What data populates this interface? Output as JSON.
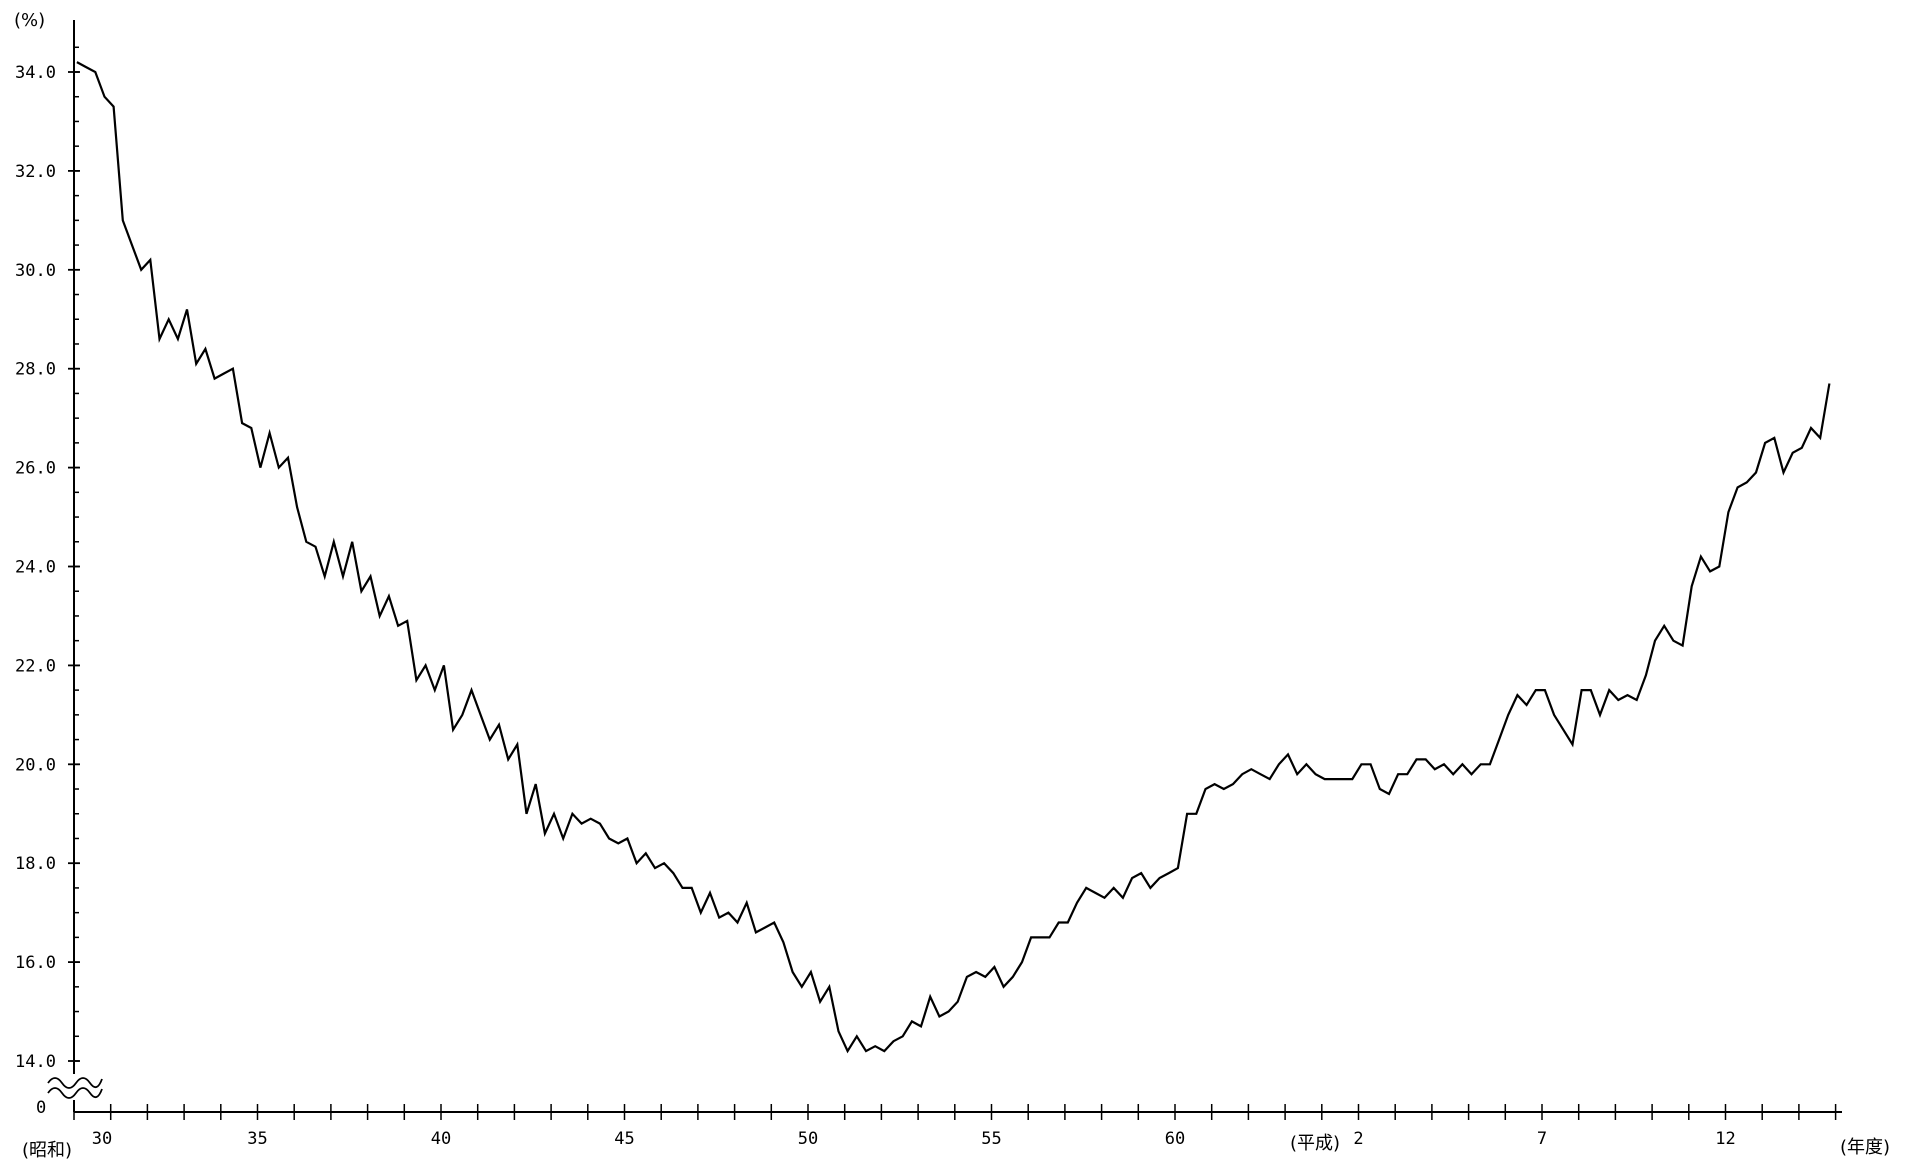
{
  "chart_data": {
    "type": "line",
    "y_unit_label": "(%)",
    "x_unit_label": "(年度)",
    "era_labels": {
      "showa": "(昭和)",
      "heisei": "(平成)"
    },
    "y_zero_label": "0",
    "ylim": [
      14.0,
      34.9
    ],
    "y_axis_break": true,
    "grid": false,
    "yticks": [
      "14.0",
      "16.0",
      "18.0",
      "20.0",
      "22.0",
      "24.0",
      "26.0",
      "28.0",
      "30.0",
      "32.0",
      "34.0"
    ],
    "xticks": [
      "30",
      "35",
      "40",
      "45",
      "50",
      "55",
      "60",
      "2",
      "7",
      "12"
    ],
    "x_start": 30,
    "x_end": 78,
    "series": [
      {
        "color": "#000000",
        "points": [
          [
            30.08,
            34.2
          ],
          [
            30.33,
            34.1
          ],
          [
            30.58,
            34.0
          ],
          [
            30.83,
            33.5
          ],
          [
            31.08,
            33.3
          ],
          [
            31.33,
            31.0
          ],
          [
            31.58,
            30.5
          ],
          [
            31.83,
            30.0
          ],
          [
            32.08,
            30.2
          ],
          [
            32.33,
            28.6
          ],
          [
            32.58,
            29.0
          ],
          [
            32.83,
            28.6
          ],
          [
            33.08,
            29.2
          ],
          [
            33.33,
            28.1
          ],
          [
            33.58,
            28.4
          ],
          [
            33.83,
            27.8
          ],
          [
            34.08,
            27.9
          ],
          [
            34.33,
            28.0
          ],
          [
            34.58,
            26.9
          ],
          [
            34.83,
            26.8
          ],
          [
            35.08,
            26.0
          ],
          [
            35.33,
            26.7
          ],
          [
            35.58,
            26.0
          ],
          [
            35.83,
            26.2
          ],
          [
            36.08,
            25.2
          ],
          [
            36.33,
            24.5
          ],
          [
            36.58,
            24.4
          ],
          [
            36.83,
            23.8
          ],
          [
            37.08,
            24.5
          ],
          [
            37.33,
            23.8
          ],
          [
            37.58,
            24.5
          ],
          [
            37.83,
            23.5
          ],
          [
            38.08,
            23.8
          ],
          [
            38.33,
            23.0
          ],
          [
            38.58,
            23.4
          ],
          [
            38.83,
            22.8
          ],
          [
            39.08,
            22.9
          ],
          [
            39.33,
            21.7
          ],
          [
            39.58,
            22.0
          ],
          [
            39.83,
            21.5
          ],
          [
            40.08,
            22.0
          ],
          [
            40.33,
            20.7
          ],
          [
            40.58,
            21.0
          ],
          [
            40.83,
            21.5
          ],
          [
            41.08,
            21.0
          ],
          [
            41.33,
            20.5
          ],
          [
            41.58,
            20.8
          ],
          [
            41.83,
            20.1
          ],
          [
            42.08,
            20.4
          ],
          [
            42.33,
            19.0
          ],
          [
            42.58,
            19.6
          ],
          [
            42.83,
            18.6
          ],
          [
            43.08,
            19.0
          ],
          [
            43.33,
            18.5
          ],
          [
            43.58,
            19.0
          ],
          [
            43.83,
            18.8
          ],
          [
            44.08,
            18.9
          ],
          [
            44.33,
            18.8
          ],
          [
            44.58,
            18.5
          ],
          [
            44.83,
            18.4
          ],
          [
            45.08,
            18.5
          ],
          [
            45.33,
            18.0
          ],
          [
            45.58,
            18.2
          ],
          [
            45.83,
            17.9
          ],
          [
            46.08,
            18.0
          ],
          [
            46.33,
            17.8
          ],
          [
            46.58,
            17.5
          ],
          [
            46.83,
            17.5
          ],
          [
            47.08,
            17.0
          ],
          [
            47.33,
            17.4
          ],
          [
            47.58,
            16.9
          ],
          [
            47.83,
            17.0
          ],
          [
            48.08,
            16.8
          ],
          [
            48.33,
            17.2
          ],
          [
            48.58,
            16.6
          ],
          [
            48.83,
            16.7
          ],
          [
            49.08,
            16.8
          ],
          [
            49.33,
            16.4
          ],
          [
            49.58,
            15.8
          ],
          [
            49.83,
            15.5
          ],
          [
            50.08,
            15.8
          ],
          [
            50.33,
            15.2
          ],
          [
            50.58,
            15.5
          ],
          [
            50.83,
            14.6
          ],
          [
            51.08,
            14.2
          ],
          [
            51.33,
            14.5
          ],
          [
            51.58,
            14.2
          ],
          [
            51.83,
            14.3
          ],
          [
            52.08,
            14.2
          ],
          [
            52.33,
            14.4
          ],
          [
            52.58,
            14.5
          ],
          [
            52.83,
            14.8
          ],
          [
            53.08,
            14.7
          ],
          [
            53.33,
            15.3
          ],
          [
            53.58,
            14.9
          ],
          [
            53.83,
            15.0
          ],
          [
            54.08,
            15.2
          ],
          [
            54.33,
            15.7
          ],
          [
            54.58,
            15.8
          ],
          [
            54.83,
            15.7
          ],
          [
            55.08,
            15.9
          ],
          [
            55.33,
            15.5
          ],
          [
            55.58,
            15.7
          ],
          [
            55.83,
            16.0
          ],
          [
            56.08,
            16.5
          ],
          [
            56.33,
            16.5
          ],
          [
            56.58,
            16.5
          ],
          [
            56.83,
            16.8
          ],
          [
            57.08,
            16.8
          ],
          [
            57.33,
            17.2
          ],
          [
            57.58,
            17.5
          ],
          [
            57.83,
            17.4
          ],
          [
            58.08,
            17.3
          ],
          [
            58.33,
            17.5
          ],
          [
            58.58,
            17.3
          ],
          [
            58.83,
            17.7
          ],
          [
            59.08,
            17.8
          ],
          [
            59.33,
            17.5
          ],
          [
            59.58,
            17.7
          ],
          [
            59.83,
            17.8
          ],
          [
            60.08,
            17.9
          ],
          [
            60.33,
            19.0
          ],
          [
            60.58,
            19.0
          ],
          [
            60.83,
            19.5
          ],
          [
            61.08,
            19.6
          ],
          [
            61.33,
            19.5
          ],
          [
            61.58,
            19.6
          ],
          [
            61.83,
            19.8
          ],
          [
            62.08,
            19.9
          ],
          [
            62.33,
            19.8
          ],
          [
            62.58,
            19.7
          ],
          [
            62.83,
            20.0
          ],
          [
            63.08,
            20.2
          ],
          [
            63.33,
            19.8
          ],
          [
            63.58,
            20.0
          ],
          [
            63.83,
            19.8
          ],
          [
            64.08,
            19.7
          ],
          [
            64.33,
            19.7
          ],
          [
            64.58,
            19.7
          ],
          [
            64.83,
            19.7
          ],
          [
            65.08,
            20.0
          ],
          [
            65.33,
            20.0
          ],
          [
            65.58,
            19.5
          ],
          [
            65.83,
            19.4
          ],
          [
            66.08,
            19.8
          ],
          [
            66.33,
            19.8
          ],
          [
            66.58,
            20.1
          ],
          [
            66.83,
            20.1
          ],
          [
            67.08,
            19.9
          ],
          [
            67.33,
            20.0
          ],
          [
            67.58,
            19.8
          ],
          [
            67.83,
            20.0
          ],
          [
            68.08,
            19.8
          ],
          [
            68.33,
            20.0
          ],
          [
            68.58,
            20.0
          ],
          [
            68.83,
            20.5
          ],
          [
            69.08,
            21.0
          ],
          [
            69.33,
            21.4
          ],
          [
            69.58,
            21.2
          ],
          [
            69.83,
            21.5
          ],
          [
            70.08,
            21.5
          ],
          [
            70.33,
            21.0
          ],
          [
            70.58,
            20.7
          ],
          [
            70.83,
            20.4
          ],
          [
            71.08,
            21.5
          ],
          [
            71.33,
            21.5
          ],
          [
            71.58,
            21.0
          ],
          [
            71.83,
            21.5
          ],
          [
            72.08,
            21.3
          ],
          [
            72.33,
            21.4
          ],
          [
            72.58,
            21.3
          ],
          [
            72.83,
            21.8
          ],
          [
            73.08,
            22.5
          ],
          [
            73.33,
            22.8
          ],
          [
            73.58,
            22.5
          ],
          [
            73.83,
            22.4
          ],
          [
            74.08,
            23.6
          ],
          [
            74.33,
            24.2
          ],
          [
            74.58,
            23.9
          ],
          [
            74.83,
            24.0
          ],
          [
            75.08,
            25.1
          ],
          [
            75.33,
            25.6
          ],
          [
            75.58,
            25.7
          ],
          [
            75.83,
            25.9
          ],
          [
            76.08,
            26.5
          ],
          [
            76.33,
            26.6
          ],
          [
            76.58,
            25.9
          ],
          [
            76.83,
            26.3
          ],
          [
            77.08,
            26.4
          ],
          [
            77.33,
            26.8
          ],
          [
            77.58,
            26.6
          ],
          [
            77.83,
            27.7
          ]
        ]
      }
    ]
  }
}
